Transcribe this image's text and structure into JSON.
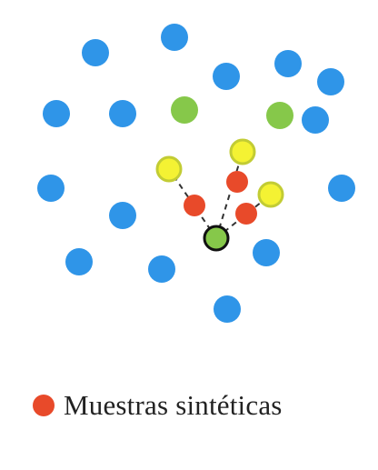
{
  "colors": {
    "majority": "#2f95e8",
    "minority": "#86c84a",
    "neighbor": "#f4f233",
    "neighbor_stroke": "#c2cc34",
    "synthetic": "#e84a2a",
    "focus_stroke": "#111111",
    "link": "#333333"
  },
  "legend": {
    "label": "Muestras sintéticas",
    "color_key": "synthetic"
  }
}
